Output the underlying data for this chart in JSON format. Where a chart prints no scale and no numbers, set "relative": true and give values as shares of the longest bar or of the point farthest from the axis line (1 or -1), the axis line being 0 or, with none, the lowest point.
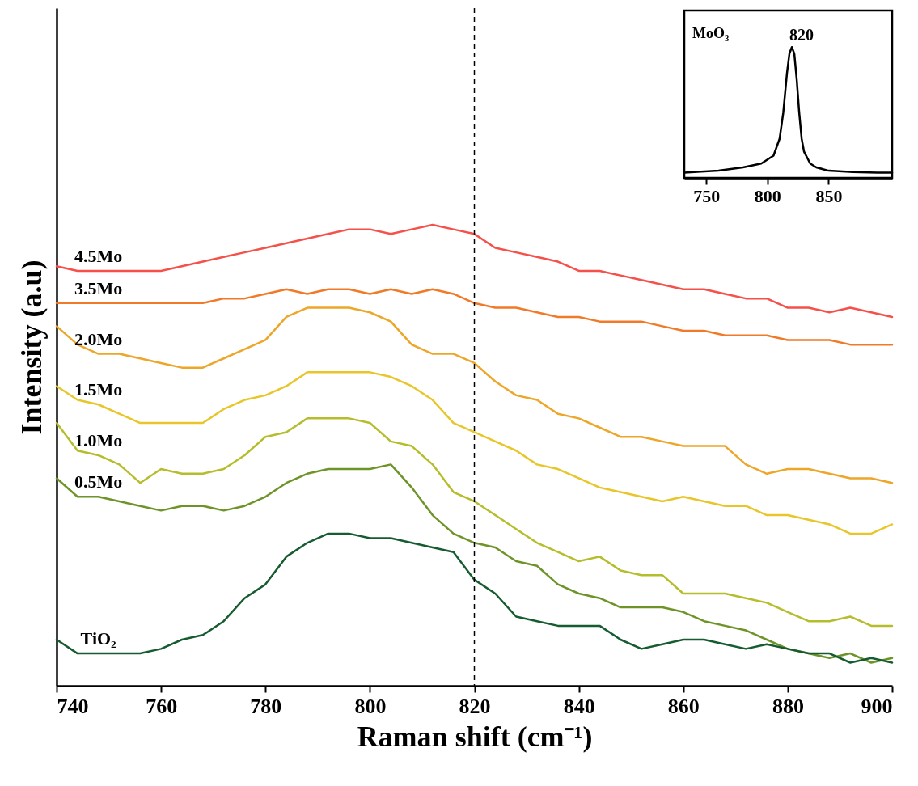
{
  "chart_data": [
    {
      "type": "line",
      "xlabel": "Raman shift (cm⁻¹)",
      "ylabel": "Intensity (a.u)",
      "relative": true,
      "xlim": [
        740,
        900
      ],
      "xticks": [
        740,
        760,
        780,
        800,
        820,
        840,
        860,
        880,
        900
      ],
      "line_style": "solid",
      "x": [
        740,
        744,
        748,
        752,
        756,
        760,
        764,
        768,
        772,
        776,
        780,
        784,
        788,
        792,
        796,
        800,
        804,
        808,
        812,
        816,
        820,
        824,
        828,
        832,
        836,
        840,
        844,
        848,
        852,
        856,
        860,
        864,
        868,
        872,
        876,
        880,
        884,
        888,
        892,
        896,
        900
      ],
      "series": [
        {
          "name": "4.5Mo",
          "color": "#f5504a",
          "values": [
            0.91,
            0.9,
            0.9,
            0.9,
            0.9,
            0.9,
            0.91,
            0.92,
            0.93,
            0.94,
            0.95,
            0.96,
            0.97,
            0.98,
            0.99,
            0.99,
            0.98,
            0.99,
            1,
            0.99,
            0.98,
            0.95,
            0.94,
            0.93,
            0.92,
            0.9,
            0.9,
            0.89,
            0.88,
            0.87,
            0.86,
            0.86,
            0.85,
            0.84,
            0.84,
            0.82,
            0.82,
            0.81,
            0.82,
            0.81,
            0.8
          ]
        },
        {
          "name": "3.5Mo",
          "color": "#f07a28",
          "values": [
            0.83,
            0.83,
            0.83,
            0.83,
            0.83,
            0.83,
            0.83,
            0.83,
            0.84,
            0.84,
            0.85,
            0.86,
            0.85,
            0.86,
            0.86,
            0.85,
            0.86,
            0.85,
            0.86,
            0.85,
            0.83,
            0.82,
            0.82,
            0.81,
            0.8,
            0.8,
            0.79,
            0.79,
            0.79,
            0.78,
            0.77,
            0.77,
            0.76,
            0.76,
            0.76,
            0.75,
            0.75,
            0.75,
            0.74,
            0.74,
            0.74
          ]
        },
        {
          "name": "2.0Mo",
          "color": "#eda628",
          "values": [
            0.78,
            0.74,
            0.72,
            0.72,
            0.71,
            0.7,
            0.69,
            0.69,
            0.71,
            0.73,
            0.75,
            0.8,
            0.82,
            0.82,
            0.82,
            0.81,
            0.79,
            0.74,
            0.72,
            0.72,
            0.7,
            0.66,
            0.63,
            0.62,
            0.59,
            0.58,
            0.56,
            0.54,
            0.54,
            0.53,
            0.52,
            0.52,
            0.52,
            0.48,
            0.46,
            0.47,
            0.47,
            0.46,
            0.45,
            0.45,
            0.44
          ]
        },
        {
          "name": "1.5Mo",
          "color": "#e8c62a",
          "values": [
            0.65,
            0.62,
            0.61,
            0.59,
            0.57,
            0.57,
            0.57,
            0.57,
            0.6,
            0.62,
            0.63,
            0.65,
            0.68,
            0.68,
            0.68,
            0.68,
            0.67,
            0.65,
            0.62,
            0.57,
            0.55,
            0.53,
            0.51,
            0.48,
            0.47,
            0.45,
            0.43,
            0.42,
            0.41,
            0.4,
            0.41,
            0.4,
            0.39,
            0.39,
            0.37,
            0.37,
            0.36,
            0.35,
            0.33,
            0.33,
            0.35
          ]
        },
        {
          "name": "1.0Mo",
          "color": "#b5bd2a",
          "values": [
            0.57,
            0.51,
            0.5,
            0.48,
            0.44,
            0.47,
            0.46,
            0.46,
            0.47,
            0.5,
            0.54,
            0.55,
            0.58,
            0.58,
            0.58,
            0.57,
            0.53,
            0.52,
            0.48,
            0.42,
            0.4,
            0.37,
            0.34,
            0.31,
            0.29,
            0.27,
            0.28,
            0.25,
            0.24,
            0.24,
            0.2,
            0.2,
            0.2,
            0.19,
            0.18,
            0.16,
            0.14,
            0.14,
            0.15,
            0.13,
            0.13
          ]
        },
        {
          "name": "0.5Mo",
          "color": "#6e9428",
          "values": [
            0.45,
            0.41,
            0.41,
            0.4,
            0.39,
            0.38,
            0.39,
            0.39,
            0.38,
            0.39,
            0.41,
            0.44,
            0.46,
            0.47,
            0.47,
            0.47,
            0.48,
            0.43,
            0.37,
            0.33,
            0.31,
            0.3,
            0.27,
            0.26,
            0.22,
            0.2,
            0.19,
            0.17,
            0.17,
            0.17,
            0.16,
            0.14,
            0.13,
            0.12,
            0.1,
            0.08,
            0.07,
            0.06,
            0.07,
            0.05,
            0.06
          ]
        },
        {
          "name": "TiO₂",
          "color": "#165c30",
          "values": [
            0.1,
            0.07,
            0.07,
            0.07,
            0.07,
            0.08,
            0.1,
            0.11,
            0.14,
            0.19,
            0.22,
            0.28,
            0.31,
            0.33,
            0.33,
            0.32,
            0.32,
            0.31,
            0.3,
            0.29,
            0.23,
            0.2,
            0.15,
            0.14,
            0.13,
            0.13,
            0.13,
            0.1,
            0.08,
            0.09,
            0.1,
            0.1,
            0.09,
            0.08,
            0.09,
            0.08,
            0.07,
            0.07,
            0.05,
            0.06,
            0.05
          ]
        }
      ],
      "ref_lines": [
        {
          "axis": "x",
          "value": 820,
          "line_style": "dashed"
        }
      ]
    },
    {
      "type": "line",
      "relative": true,
      "xlim": [
        732,
        902
      ],
      "xticks": [
        750,
        800,
        850
      ],
      "x": [
        732,
        740,
        760,
        780,
        795,
        805,
        810,
        813,
        816,
        818,
        820,
        822,
        824,
        826,
        828,
        830,
        835,
        840,
        850,
        870,
        890,
        902
      ],
      "series": [
        {
          "name": "MoO₃",
          "color": "#000000",
          "values": [
            0.04,
            0.045,
            0.055,
            0.08,
            0.11,
            0.17,
            0.3,
            0.5,
            0.8,
            0.95,
            1,
            0.95,
            0.75,
            0.5,
            0.3,
            0.2,
            0.11,
            0.08,
            0.055,
            0.045,
            0.04,
            0.04
          ]
        }
      ],
      "annotations": [
        {
          "text": "820",
          "x": 820,
          "y": 1
        }
      ]
    }
  ]
}
